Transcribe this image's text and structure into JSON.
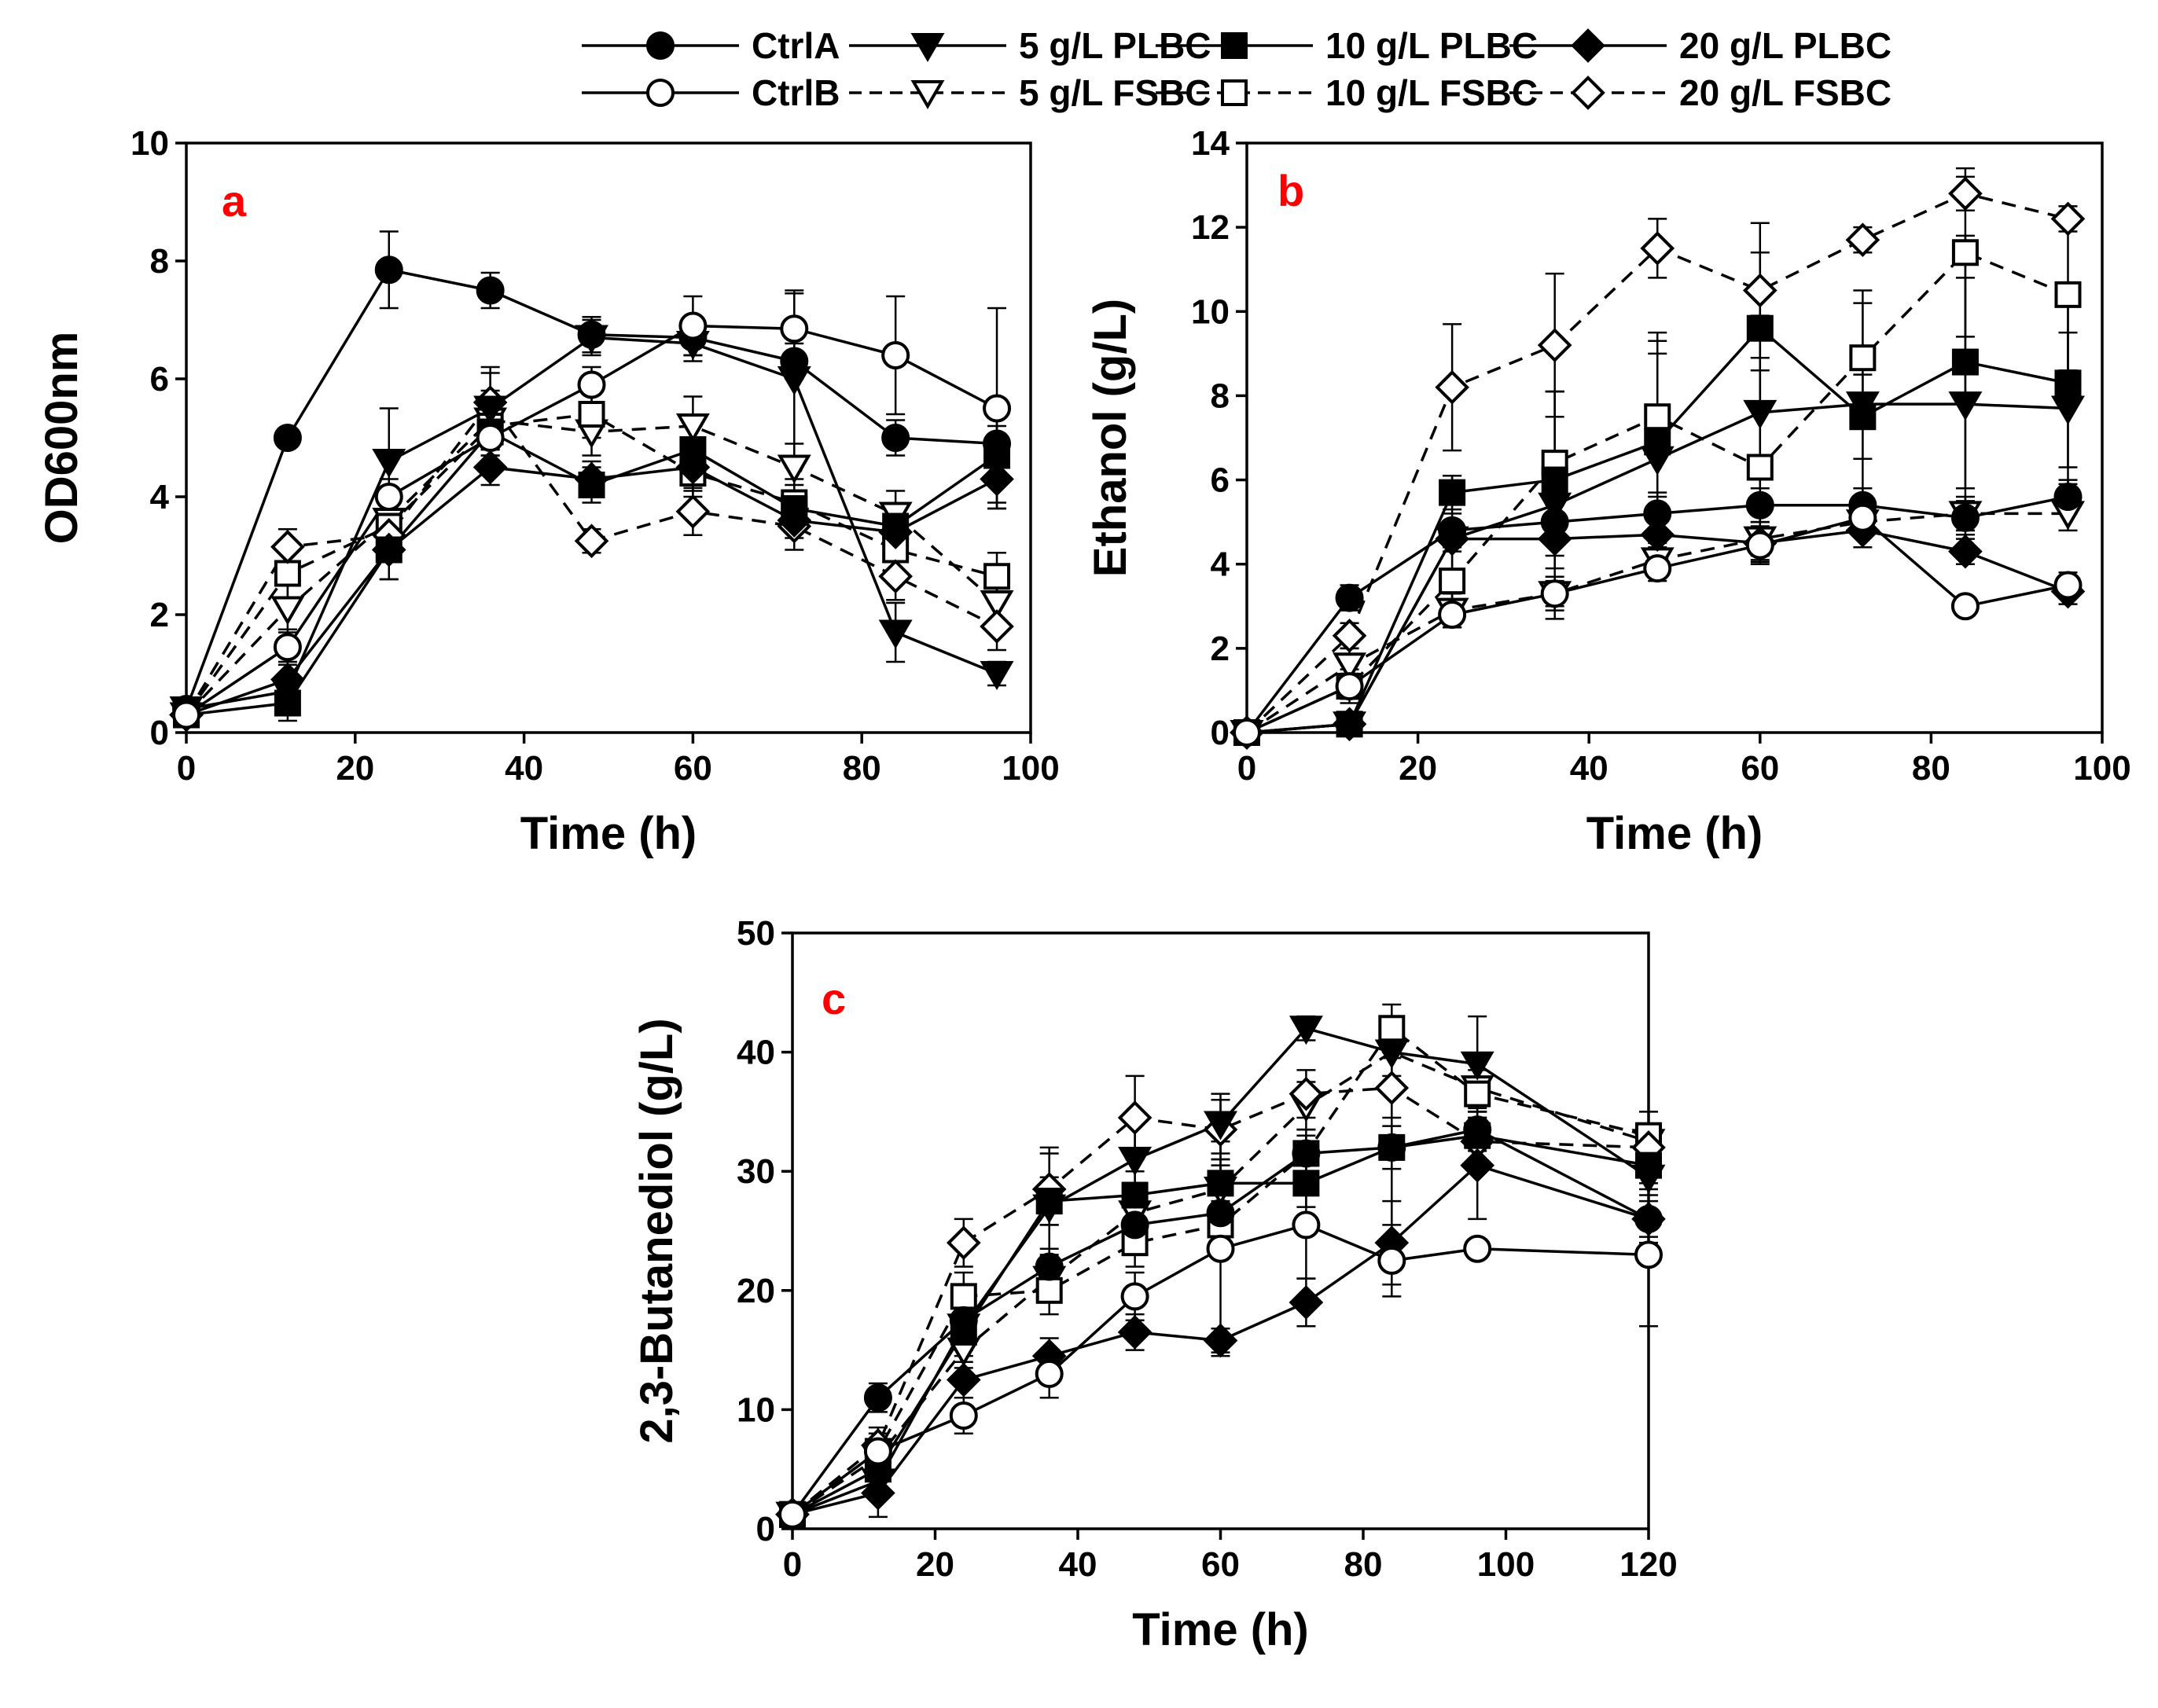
{
  "legend": [
    {
      "key": "ctrlA",
      "label": "CtrlA",
      "marker": "circle",
      "fill": "#000000",
      "dash": false
    },
    {
      "key": "p5",
      "label": "5 g/L PLBC",
      "marker": "tri-down",
      "fill": "#000000",
      "dash": false
    },
    {
      "key": "p10",
      "label": "10 g/L PLBC",
      "marker": "square",
      "fill": "#000000",
      "dash": false
    },
    {
      "key": "p20",
      "label": "20 g/L  PLBC",
      "marker": "diamond",
      "fill": "#000000",
      "dash": false
    },
    {
      "key": "ctrlB",
      "label": "CtrlB",
      "marker": "circle",
      "fill": "#ffffff",
      "dash": false
    },
    {
      "key": "f5",
      "label": "5 g/L FSBC",
      "marker": "tri-down",
      "fill": "#ffffff",
      "dash": true
    },
    {
      "key": "f10",
      "label": "10 g/L FSBC",
      "marker": "square",
      "fill": "#ffffff",
      "dash": true
    },
    {
      "key": "f20",
      "label": "20 g/L FSBC",
      "marker": "diamond",
      "fill": "#ffffff",
      "dash": true
    }
  ],
  "panel_color": "#ff0000",
  "chart_data": [
    {
      "id": "a",
      "type": "line",
      "panel_label": "a",
      "xlabel": "Time (h)",
      "ylabel": "OD600nm",
      "xlim": [
        0,
        100
      ],
      "ylim": [
        0,
        10
      ],
      "xticks": [
        0,
        20,
        40,
        60,
        80,
        100
      ],
      "yticks": [
        0,
        2,
        4,
        6,
        8,
        10
      ],
      "x": [
        0,
        12,
        24,
        36,
        48,
        60,
        72,
        84,
        96
      ],
      "series": [
        {
          "key": "ctrlA",
          "values": [
            0.4,
            5.0,
            7.85,
            7.5,
            6.75,
            6.7,
            6.3,
            5.0,
            4.9
          ],
          "err": [
            0,
            0,
            0.65,
            0.3,
            0.3,
            0.3,
            0.3,
            0.3,
            0.3
          ]
        },
        {
          "key": "p5",
          "values": [
            0.4,
            0.7,
            4.6,
            5.5,
            6.7,
            6.6,
            6.0,
            1.7,
            1.0
          ],
          "err": [
            0,
            0.2,
            0.9,
            0.6,
            0.3,
            0.3,
            1.5,
            0.5,
            0.2
          ]
        },
        {
          "key": "p10",
          "values": [
            0.3,
            0.5,
            3.1,
            5.1,
            4.2,
            4.8,
            3.8,
            3.5,
            4.7
          ],
          "err": [
            0,
            0.3,
            0.5,
            0.5,
            0.3,
            0.4,
            0.4,
            0.3,
            0.8
          ]
        },
        {
          "key": "p20",
          "values": [
            0.3,
            0.9,
            3.1,
            4.5,
            4.3,
            4.5,
            3.6,
            3.4,
            4.3
          ],
          "err": [
            0,
            0.3,
            0.5,
            0.3,
            0.3,
            0.4,
            0.3,
            0.3,
            0.5
          ]
        },
        {
          "key": "ctrlB",
          "values": [
            0.3,
            1.45,
            4.0,
            5.0,
            5.9,
            6.9,
            6.85,
            6.4,
            5.5
          ],
          "err": [
            0,
            0.3,
            0.3,
            0.3,
            0.3,
            0.5,
            0.6,
            1.0,
            1.7
          ]
        },
        {
          "key": "f5",
          "values": [
            0.3,
            2.1,
            3.6,
            5.3,
            5.1,
            5.2,
            4.5,
            3.7,
            2.2
          ],
          "err": [
            0,
            0.4,
            0.4,
            0.5,
            0.4,
            0.5,
            0.4,
            0.4,
            0.4
          ]
        },
        {
          "key": "f10",
          "values": [
            0.3,
            2.7,
            3.5,
            5.2,
            5.4,
            4.4,
            3.9,
            3.1,
            2.65
          ],
          "err": [
            0,
            0.5,
            0.4,
            0.5,
            0.4,
            0.4,
            0.4,
            0.4,
            0.4
          ]
        },
        {
          "key": "f20",
          "values": [
            0.3,
            3.15,
            3.35,
            5.6,
            3.25,
            3.75,
            3.5,
            2.65,
            1.8
          ],
          "err": [
            0,
            0.3,
            0.4,
            0.6,
            0.2,
            0.4,
            0.4,
            0.4,
            0.4
          ]
        }
      ]
    },
    {
      "id": "b",
      "type": "line",
      "panel_label": "b",
      "xlabel": "Time (h)",
      "ylabel": "Ethanol (g/L)",
      "xlim": [
        0,
        100
      ],
      "ylim": [
        0,
        14
      ],
      "xticks": [
        0,
        20,
        40,
        60,
        80,
        100
      ],
      "yticks": [
        0,
        2,
        4,
        6,
        8,
        10,
        12,
        14
      ],
      "x": [
        0,
        12,
        24,
        36,
        48,
        60,
        72,
        84,
        96
      ],
      "series": [
        {
          "key": "ctrlA",
          "values": [
            0,
            3.2,
            4.8,
            5.0,
            5.2,
            5.4,
            5.4,
            5.1,
            5.6
          ],
          "err": [
            0,
            0.3,
            0.4,
            0.4,
            0.4,
            0.4,
            0.4,
            0.4,
            0.4
          ]
        },
        {
          "key": "p5",
          "values": [
            0,
            0.2,
            4.6,
            5.4,
            6.5,
            7.6,
            7.8,
            7.8,
            7.7
          ],
          "err": [
            0,
            0.2,
            1.5,
            2.7,
            2.5,
            2.3,
            2.4,
            3.0,
            1.8
          ]
        },
        {
          "key": "p10",
          "values": [
            0,
            0.2,
            5.7,
            6.0,
            6.9,
            9.6,
            7.5,
            8.8,
            8.3
          ],
          "err": [
            0,
            0.2,
            0.4,
            2.1,
            2.6,
            1.8,
            1.0,
            3.0,
            2.0
          ]
        },
        {
          "key": "p20",
          "values": [
            0,
            0.2,
            4.6,
            4.6,
            4.7,
            4.5,
            4.8,
            4.3,
            3.35
          ],
          "err": [
            0,
            0.2,
            0.3,
            0.4,
            0.3,
            0.4,
            0.4,
            0.3,
            0.3
          ]
        },
        {
          "key": "ctrlB",
          "values": [
            0,
            1.1,
            2.8,
            3.3,
            3.9,
            4.45,
            5.1,
            3.0,
            3.5
          ],
          "err": [
            0,
            0.3,
            0.3,
            0.3,
            0.3,
            0.4,
            0.3,
            0.2,
            0.3
          ]
        },
        {
          "key": "f5",
          "values": [
            0,
            1.6,
            2.9,
            3.3,
            4.1,
            4.6,
            5.0,
            5.2,
            5.2
          ],
          "err": [
            0,
            0.4,
            0.4,
            0.4,
            0.4,
            0.4,
            0.3,
            0.4,
            0.4
          ]
        },
        {
          "key": "f10",
          "values": [
            0,
            1.1,
            3.6,
            6.4,
            7.5,
            6.3,
            8.9,
            11.4,
            10.4
          ],
          "err": [
            0,
            0.4,
            1.1,
            1.7,
            1.8,
            2.3,
            1.6,
            2.0,
            1.8
          ]
        },
        {
          "key": "f20",
          "values": [
            0,
            2.3,
            8.2,
            9.2,
            11.5,
            10.5,
            11.7,
            12.8,
            12.2
          ],
          "err": [
            0,
            0.3,
            1.5,
            1.7,
            0.7,
            1.6,
            0.3,
            0.4,
            0.3
          ]
        }
      ]
    },
    {
      "id": "c",
      "type": "line",
      "panel_label": "c",
      "xlabel": "Time (h)",
      "ylabel": "2,3-Butanediol (g/L)",
      "xlim": [
        0,
        120
      ],
      "ylim": [
        0,
        50
      ],
      "xticks": [
        0,
        20,
        40,
        60,
        80,
        100,
        120
      ],
      "yticks": [
        0,
        10,
        20,
        30,
        40,
        50
      ],
      "x": [
        0,
        12,
        24,
        36,
        48,
        60,
        72,
        84,
        96,
        120
      ],
      "series": [
        {
          "key": "ctrlA",
          "values": [
            1.2,
            11.0,
            17.5,
            22.0,
            25.5,
            26.5,
            31.5,
            32.0,
            33.5,
            26.0
          ],
          "err": [
            0,
            1.2,
            1.5,
            1.5,
            1.5,
            1.5,
            1.5,
            1.8,
            1.8,
            1.5
          ]
        },
        {
          "key": "p5",
          "values": [
            1.2,
            4.0,
            17.0,
            27.0,
            31.0,
            34.0,
            42.0,
            40.0,
            39.0,
            29.5
          ],
          "err": [
            0,
            1.5,
            2.0,
            5.0,
            3.0,
            2.5,
            1.0,
            3.0,
            4.0,
            3.0
          ]
        },
        {
          "key": "p10",
          "values": [
            1.2,
            5.0,
            16.5,
            27.5,
            28.0,
            29.0,
            29.0,
            32.0,
            33.0,
            30.5
          ],
          "err": [
            0,
            1.5,
            2.0,
            2.0,
            2.0,
            2.0,
            2.0,
            8.0,
            2.5,
            2.0
          ]
        },
        {
          "key": "p20",
          "values": [
            1.2,
            3.0,
            12.5,
            14.5,
            16.5,
            15.8,
            19.0,
            24.0,
            30.5,
            26.0
          ],
          "err": [
            0,
            2.0,
            1.5,
            1.5,
            1.5,
            1.0,
            2.0,
            3.5,
            4.5,
            2.0
          ]
        },
        {
          "key": "ctrlB",
          "values": [
            1.2,
            6.5,
            9.5,
            13.0,
            19.5,
            23.5,
            25.5,
            22.5,
            23.5,
            23.0
          ],
          "err": [
            0,
            1.5,
            1.5,
            2.0,
            2.0,
            9.0,
            4.5,
            3.0,
            0.5,
            6.0
          ]
        },
        {
          "key": "f5",
          "values": [
            1.2,
            6.0,
            15.0,
            21.0,
            26.5,
            28.5,
            35.5,
            40.0,
            37.0,
            32.5
          ],
          "err": [
            0,
            1.5,
            1.5,
            2.0,
            2.0,
            2.0,
            2.0,
            2.0,
            2.0,
            1.5
          ]
        },
        {
          "key": "f10",
          "values": [
            1.2,
            6.5,
            19.5,
            20.0,
            24.0,
            25.5,
            31.5,
            42.0,
            36.5,
            33.0
          ],
          "err": [
            0,
            1.5,
            2.0,
            2.0,
            2.0,
            2.0,
            2.0,
            2.0,
            2.0,
            2.0
          ]
        },
        {
          "key": "f20",
          "values": [
            1.2,
            7.0,
            24.0,
            28.5,
            34.5,
            33.5,
            36.5,
            37.0,
            32.5,
            32.0
          ],
          "err": [
            0,
            1.5,
            2.0,
            3.0,
            3.5,
            2.5,
            2.0,
            2.5,
            2.0,
            2.0
          ]
        }
      ]
    }
  ]
}
